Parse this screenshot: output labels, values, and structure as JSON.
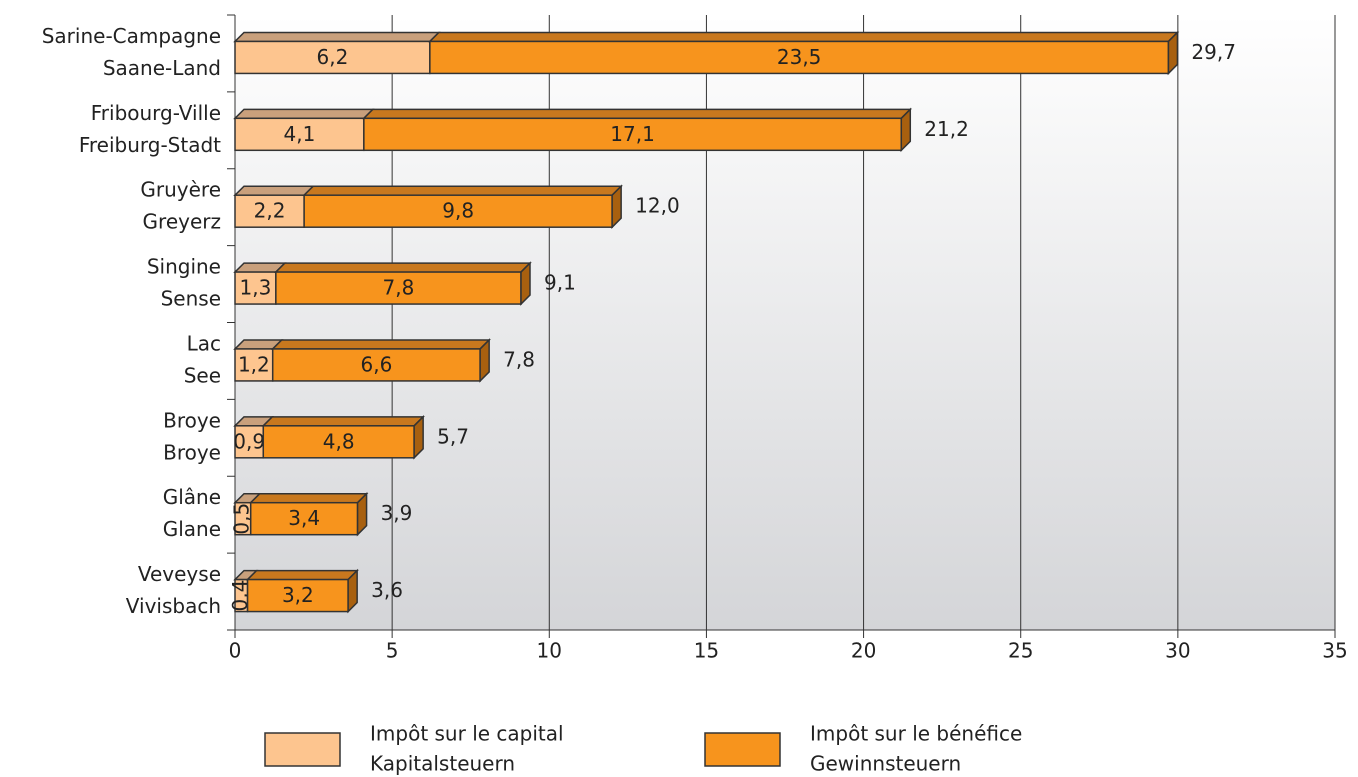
{
  "chart_data": {
    "type": "stacked-bar-horizontal",
    "categories": [
      [
        "Sarine-Campagne",
        "Saane-Land"
      ],
      [
        "Fribourg-Ville",
        "Freiburg-Stadt"
      ],
      [
        "Gruyère",
        "Greyerz"
      ],
      [
        "Singine",
        "Sense"
      ],
      [
        "Lac",
        "See"
      ],
      [
        "Broye",
        "Broye"
      ],
      [
        "Glâne",
        "Glane"
      ],
      [
        "Veveyse",
        "Vivisbach"
      ]
    ],
    "series": [
      {
        "name": [
          "Impôt sur le capital",
          "Kapitalsteuern"
        ],
        "color": "#fdc58f",
        "top_color": "#c9a07c",
        "values": [
          6.2,
          4.1,
          2.2,
          1.3,
          1.2,
          0.9,
          0.5,
          0.4
        ],
        "value_labels": [
          "6,2",
          "4,1",
          "2,2",
          "1,3",
          "1,2",
          "0,9",
          "0,5",
          "0,4"
        ]
      },
      {
        "name": [
          "Impôt sur le bénéfice",
          "Gewinnsteuern"
        ],
        "color": "#f7941d",
        "top_color": "#c8781e",
        "values": [
          23.5,
          17.1,
          9.8,
          7.8,
          6.6,
          4.8,
          3.4,
          3.2
        ],
        "value_labels": [
          "23,5",
          "17,1",
          "9,8",
          "7,8",
          "6,6",
          "4,8",
          "3,4",
          "3,2"
        ]
      }
    ],
    "totals": [
      29.7,
      21.2,
      12.0,
      9.1,
      7.8,
      5.7,
      3.9,
      3.6
    ],
    "total_labels": [
      "29,7",
      "21,2",
      "12,0",
      "9,1",
      "7,8",
      "5,7",
      "3,9",
      "3,6"
    ],
    "xlim": [
      0,
      35
    ],
    "xticks": [
      0,
      5,
      10,
      15,
      20,
      25,
      30,
      35
    ],
    "grid": true
  }
}
